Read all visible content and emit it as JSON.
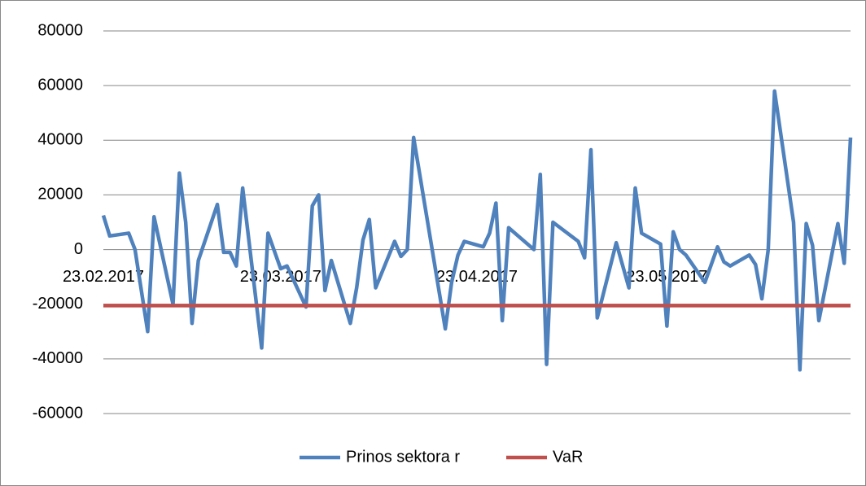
{
  "chart_data": {
    "type": "line",
    "x": [
      "23.02.2017",
      "24.02.2017",
      "27.02.2017",
      "28.02.2017",
      "02.03.2017",
      "03.03.2017",
      "06.03.2017",
      "07.03.2017",
      "08.03.2017",
      "09.03.2017",
      "10.03.2017",
      "13.03.2017",
      "14.03.2017",
      "15.03.2017",
      "16.03.2017",
      "17.03.2017",
      "20.03.2017",
      "21.03.2017",
      "23.03.2017",
      "24.03.2017",
      "27.03.2017",
      "28.03.2017",
      "29.03.2017",
      "30.03.2017",
      "31.03.2017",
      "03.04.2017",
      "04.04.2017",
      "05.04.2017",
      "06.04.2017",
      "07.04.2017",
      "10.04.2017",
      "11.04.2017",
      "12.04.2017",
      "13.04.2017",
      "18.04.2017",
      "19.04.2017",
      "20.04.2017",
      "21.04.2017",
      "24.04.2017",
      "25.04.2017",
      "26.04.2017",
      "27.04.2017",
      "28.04.2017",
      "02.05.2017",
      "03.05.2017",
      "04.05.2017",
      "05.05.2017",
      "09.05.2017",
      "10.05.2017",
      "11.05.2017",
      "12.05.2017",
      "15.05.2017",
      "17.05.2017",
      "18.05.2017",
      "19.05.2017",
      "22.05.2017",
      "23.05.2017",
      "24.05.2017",
      "25.05.2017",
      "26.05.2017",
      "29.05.2017",
      "31.05.2017",
      "01.06.2017",
      "02.06.2017",
      "05.06.2017",
      "06.06.2017",
      "07.06.2017",
      "08.06.2017",
      "09.06.2017",
      "12.06.2017",
      "13.06.2017",
      "14.06.2017",
      "15.06.2017",
      "16.06.2017",
      "19.06.2017",
      "20.06.2017",
      "21.06.2017"
    ],
    "series": [
      {
        "name": "Prinos sektora r",
        "color": "#4f81bd",
        "values": [
          12500,
          5000,
          6000,
          0,
          -30000,
          12000,
          -20000,
          28000,
          10000,
          -27000,
          -4000,
          16500,
          -1000,
          -1000,
          -6000,
          22500,
          -36000,
          6000,
          -7000,
          -6000,
          -21000,
          16000,
          20000,
          -15000,
          -4000,
          -27000,
          -14000,
          3500,
          11000,
          -14000,
          3000,
          -2500,
          0,
          41000,
          -29000,
          -12000,
          -2000,
          3000,
          1000,
          6000,
          17000,
          -26000,
          8000,
          0,
          27500,
          -42000,
          10000,
          3000,
          -3000,
          36500,
          -25000,
          2500,
          -14000,
          22500,
          6000,
          2000,
          -28000,
          6500,
          0,
          -2000,
          -12000,
          1000,
          -4500,
          -6000,
          -2000,
          -5500,
          -18000,
          0,
          58000,
          10000,
          -44000,
          9500,
          1500,
          -26000,
          9500,
          -5000,
          41000
        ]
      },
      {
        "name": "VaR",
        "color": "#c0504d",
        "values": [
          -20500,
          -20500,
          -20500,
          -20500,
          -20500,
          -20500,
          -20500,
          -20500,
          -20500,
          -20500,
          -20500,
          -20500,
          -20500,
          -20500,
          -20500,
          -20500,
          -20500,
          -20500,
          -20500,
          -20500,
          -20500,
          -20500,
          -20500,
          -20500,
          -20500,
          -20500,
          -20500,
          -20500,
          -20500,
          -20500,
          -20500,
          -20500,
          -20500,
          -20500,
          -20500,
          -20500,
          -20500,
          -20500,
          -20500,
          -20500,
          -20500,
          -20500,
          -20500,
          -20500,
          -20500,
          -20500,
          -20500,
          -20500,
          -20500,
          -20500,
          -20500,
          -20500,
          -20500,
          -20500,
          -20500,
          -20500,
          -20500,
          -20500,
          -20500,
          -20500,
          -20500,
          -20500,
          -20500,
          -20500,
          -20500,
          -20500,
          -20500,
          -20500,
          -20500,
          -20500,
          -20500,
          -20500,
          -20500,
          -20500,
          -20500,
          -20500,
          -20500
        ]
      }
    ],
    "xlim": [
      "23.02.2017",
      "21.06.2017"
    ],
    "xticks": [
      "23.02.2017",
      "23.03.2017",
      "23.04.2017",
      "23.05.2017"
    ],
    "ylim": [
      -60000,
      80000
    ],
    "yticks": [
      -60000,
      -40000,
      -20000,
      0,
      20000,
      40000,
      60000,
      80000
    ],
    "grid": true,
    "legend": "bottom"
  }
}
